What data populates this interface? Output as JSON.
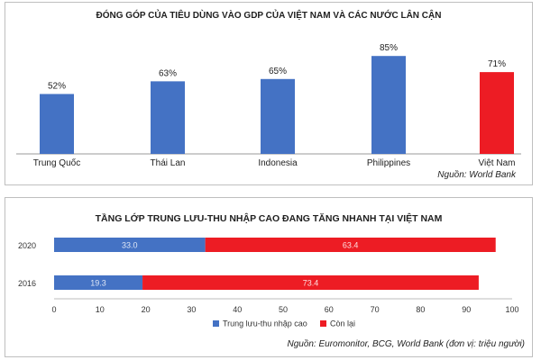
{
  "chart_data": [
    {
      "type": "bar",
      "title": "ĐÓNG GÓP CỦA TIÊU DÙNG VÀO GDP CỦA VIỆT NAM VÀ CÁC NƯỚC LÂN CẬN",
      "categories": [
        "Trung Quốc",
        "Thái Lan",
        "Indonesia",
        "Philippines",
        "Việt Nam"
      ],
      "values": [
        52,
        63,
        65,
        85,
        71
      ],
      "value_labels": [
        "52%",
        "63%",
        "65%",
        "85%",
        "71%"
      ],
      "bar_colors": [
        "#4472c4",
        "#4472c4",
        "#4472c4",
        "#4472c4",
        "#ed1c24"
      ],
      "ylim": [
        0,
        100
      ],
      "grid": false,
      "source": "Nguồn: World Bank"
    },
    {
      "type": "bar",
      "orientation": "horizontal",
      "stacked": true,
      "title": "TẦNG LỚP TRUNG LƯU-THU NHẬP CAO ĐANG TĂNG NHANH TẠI VIỆT NAM",
      "categories": [
        "2020",
        "2016"
      ],
      "series": [
        {
          "name": "Trung lưu-thu nhập cao",
          "values": [
            33.0,
            19.3
          ],
          "labels": [
            "33.0",
            "19.3"
          ],
          "color": "#4472c4"
        },
        {
          "name": "Còn lại",
          "values": [
            63.4,
            73.4
          ],
          "labels": [
            "63.4",
            "73.4"
          ],
          "color": "#ed1c24"
        }
      ],
      "xlim": [
        0,
        100
      ],
      "xticks": [
        "0",
        "10",
        "20",
        "30",
        "40",
        "50",
        "60",
        "70",
        "80",
        "90",
        "100"
      ],
      "grid": false,
      "legend": "bottom",
      "source": "Nguồn: Euromonitor, BCG, World Bank (đơn vị: triệu người)"
    }
  ]
}
